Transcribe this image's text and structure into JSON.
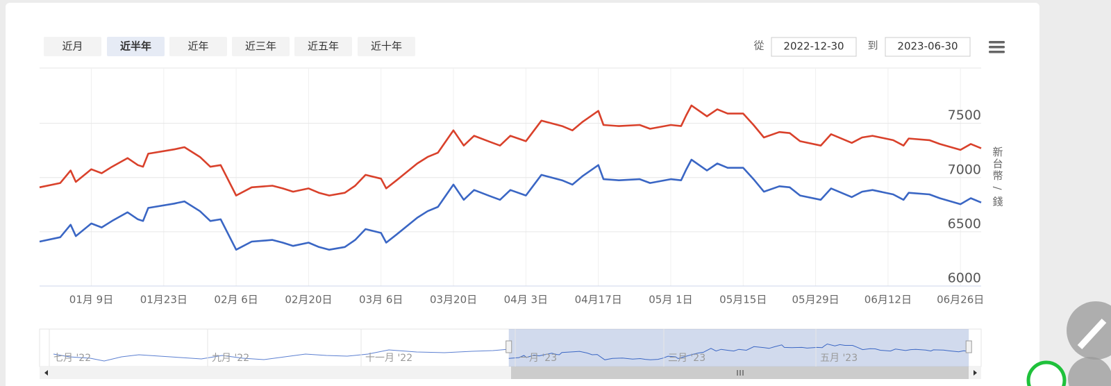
{
  "range_buttons": [
    "近月",
    "近半年",
    "近年",
    "近三年",
    "近五年",
    "近十年"
  ],
  "selected_range": 1,
  "from_label": "從",
  "from_date": "2022-12-30",
  "to_label": "到",
  "to_date": "2023-06-30",
  "chart_data": {
    "type": "line",
    "xlim": [
      "2022-12-30",
      "2023-06-30"
    ],
    "x": [
      "2022-12-30",
      "2023-01-03",
      "2023-01-05",
      "2023-01-06",
      "2023-01-09",
      "2023-01-11",
      "2023-01-13",
      "2023-01-16",
      "2023-01-18",
      "2023-01-19",
      "2023-01-20",
      "2023-01-25",
      "2023-01-27",
      "2023-01-30",
      "2023-02-01",
      "2023-02-03",
      "2023-02-06",
      "2023-02-09",
      "2023-02-13",
      "2023-02-15",
      "2023-02-17",
      "2023-02-20",
      "2023-02-22",
      "2023-02-24",
      "2023-02-27",
      "2023-03-01",
      "2023-03-03",
      "2023-03-06",
      "2023-03-07",
      "2023-03-09",
      "2023-03-13",
      "2023-03-15",
      "2023-03-17",
      "2023-03-20",
      "2023-03-22",
      "2023-03-24",
      "2023-03-27",
      "2023-03-29",
      "2023-03-31",
      "2023-04-03",
      "2023-04-06",
      "2023-04-10",
      "2023-04-12",
      "2023-04-14",
      "2023-04-17",
      "2023-04-18",
      "2023-04-21",
      "2023-04-25",
      "2023-04-27",
      "2023-05-01",
      "2023-05-03",
      "2023-05-04",
      "2023-05-05",
      "2023-05-08",
      "2023-05-10",
      "2023-05-12",
      "2023-05-15",
      "2023-05-17",
      "2023-05-19",
      "2023-05-22",
      "2023-05-24",
      "2023-05-26",
      "2023-05-30",
      "2023-06-01",
      "2023-06-05",
      "2023-06-07",
      "2023-06-09",
      "2023-06-13",
      "2023-06-15",
      "2023-06-16",
      "2023-06-20",
      "2023-06-22",
      "2023-06-26",
      "2023-06-28",
      "2023-06-30"
    ],
    "series": [
      {
        "color": "#d9412b",
        "values": [
          6910,
          6950,
          7065,
          6960,
          7077,
          7040,
          7100,
          7180,
          7115,
          7100,
          7220,
          7260,
          7280,
          7190,
          7100,
          7115,
          6835,
          6910,
          6925,
          6900,
          6870,
          6900,
          6860,
          6835,
          6860,
          6925,
          7025,
          6990,
          6900,
          6975,
          7130,
          7190,
          7230,
          7435,
          7295,
          7385,
          7330,
          7295,
          7385,
          7335,
          7525,
          7475,
          7435,
          7515,
          7615,
          7485,
          7475,
          7485,
          7450,
          7485,
          7475,
          7575,
          7665,
          7565,
          7630,
          7590,
          7590,
          7485,
          7370,
          7420,
          7410,
          7335,
          7295,
          7400,
          7320,
          7370,
          7385,
          7345,
          7295,
          7360,
          7345,
          7310,
          7255,
          7310,
          7270
        ]
      },
      {
        "color": "#3a66c4",
        "values": [
          6410,
          6450,
          6565,
          6460,
          6577,
          6540,
          6600,
          6680,
          6615,
          6600,
          6720,
          6760,
          6780,
          6690,
          6600,
          6615,
          6335,
          6410,
          6425,
          6400,
          6370,
          6400,
          6360,
          6335,
          6360,
          6425,
          6525,
          6490,
          6400,
          6475,
          6630,
          6690,
          6730,
          6935,
          6795,
          6885,
          6830,
          6795,
          6885,
          6835,
          7025,
          6975,
          6935,
          7015,
          7115,
          6985,
          6975,
          6985,
          6950,
          6985,
          6975,
          7075,
          7165,
          7065,
          7130,
          7090,
          7090,
          6985,
          6870,
          6920,
          6910,
          6835,
          6795,
          6900,
          6820,
          6870,
          6885,
          6845,
          6795,
          6860,
          6845,
          6810,
          6755,
          6810,
          6770
        ]
      }
    ],
    "ylim": [
      6000,
      8010
    ],
    "yticks": [
      6000,
      6500,
      7000,
      7500
    ],
    "xticks": [
      {
        "value": "2023-01-09",
        "label": "01月 9日"
      },
      {
        "value": "2023-01-23",
        "label": "01月23日"
      },
      {
        "value": "2023-02-06",
        "label": "02月 6日"
      },
      {
        "value": "2023-02-20",
        "label": "02月20日"
      },
      {
        "value": "2023-03-06",
        "label": "03月 6日"
      },
      {
        "value": "2023-03-20",
        "label": "03月20日"
      },
      {
        "value": "2023-04-03",
        "label": "04月 3日"
      },
      {
        "value": "2023-04-17",
        "label": "04月17日"
      },
      {
        "value": "2023-05-01",
        "label": "05月 1日"
      },
      {
        "value": "2023-05-15",
        "label": "05月15日"
      },
      {
        "value": "2023-05-29",
        "label": "05月29日"
      },
      {
        "value": "2023-06-12",
        "label": "06月12日"
      },
      {
        "value": "2023-06-26",
        "label": "06月26日"
      }
    ],
    "y_label": "新台幣 / 錢",
    "grid": true
  },
  "navigator": {
    "labels": [
      "七月 '22",
      "九月 '22",
      "十一月 '22",
      "一月 '23",
      "三月 '23",
      "五月 '23"
    ]
  }
}
